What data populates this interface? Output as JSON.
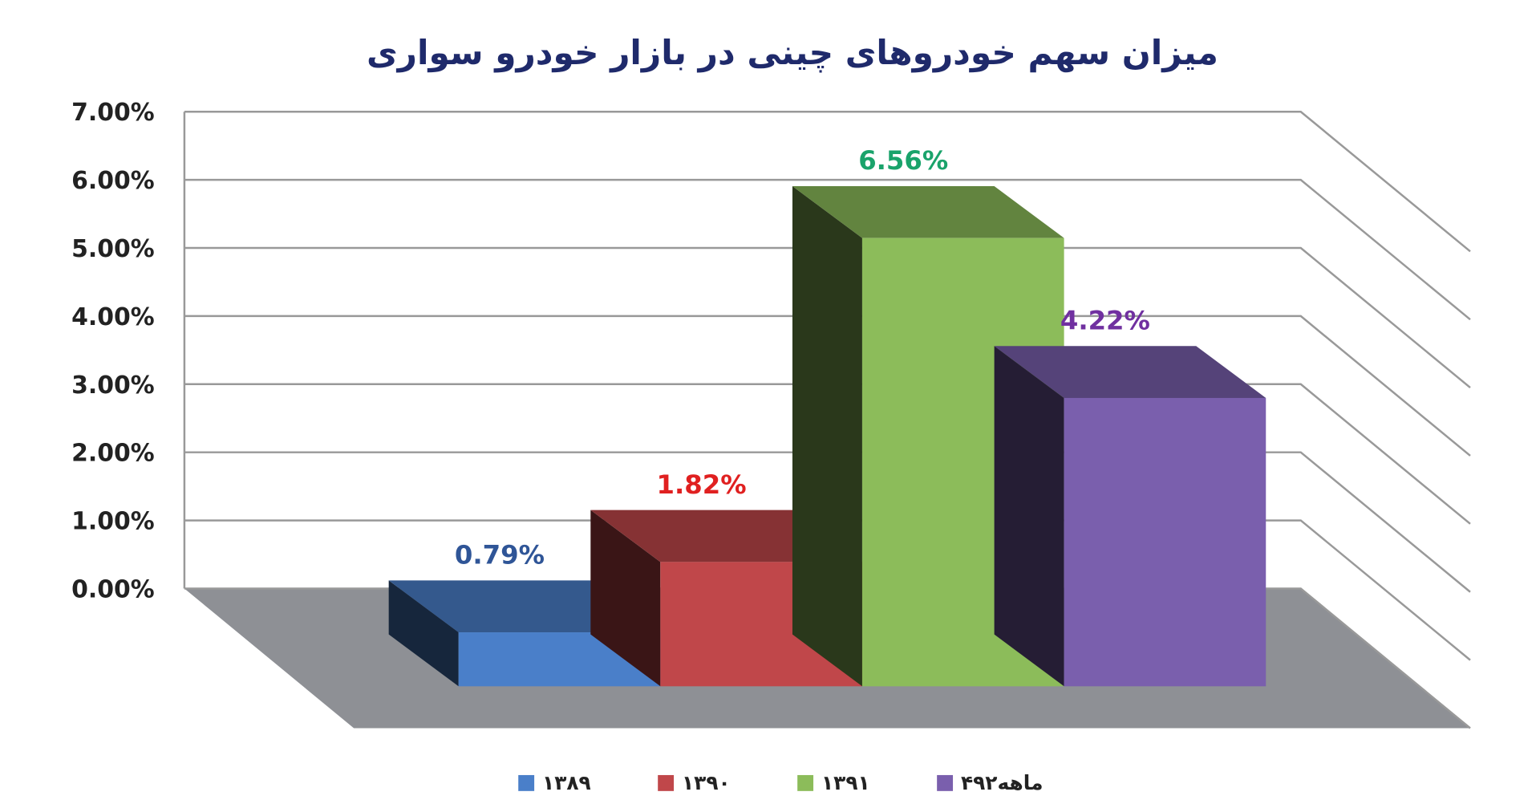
{
  "chart_data": {
    "type": "bar",
    "title": "میزان سهم خودروهای چینی در بازار خودرو سواری",
    "categories": [
      null
    ],
    "series": [
      {
        "name": "۱۳۸۹",
        "color": "#4a7fc9",
        "values": [
          0.79
        ],
        "value_labels": [
          "0.79%"
        ]
      },
      {
        "name": "۱۳۹۰",
        "color": "#c0474a",
        "values": [
          1.82
        ],
        "value_labels": [
          "1.82%"
        ]
      },
      {
        "name": "۱۳۹۱",
        "color": "#8cbc5a",
        "values": [
          6.56
        ],
        "value_labels": [
          "6.56%"
        ]
      },
      {
        "name": "۴ماهه۹۲",
        "color": "#7a5fad",
        "values": [
          4.22
        ],
        "value_labels": [
          "4.22%"
        ]
      }
    ],
    "ylim": [
      0,
      7
    ],
    "yticks": [
      {
        "value": 0,
        "label": "0.00%"
      },
      {
        "value": 1,
        "label": "1.00%"
      },
      {
        "value": 2,
        "label": "2.00%"
      },
      {
        "value": 3,
        "label": "3.00%"
      },
      {
        "value": 4,
        "label": "4.00%"
      },
      {
        "value": 5,
        "label": "5.00%"
      },
      {
        "value": 6,
        "label": "6.00%"
      },
      {
        "value": 7,
        "label": "7.00%"
      }
    ],
    "grid": true
  }
}
